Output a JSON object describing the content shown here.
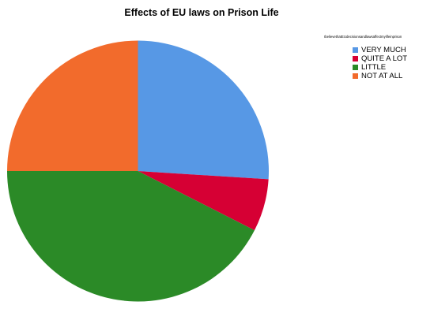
{
  "chart_data": {
    "type": "pie",
    "title": "Effects of EU laws on Prison Life",
    "legend_title": "IbelievethatEUdecisionsandlawsaffectmylifeinprison",
    "legend_position": "top-right",
    "start_angle_deg": 0,
    "direction": "clockwise",
    "slices": [
      {
        "label": "VERY MUCH",
        "value": 26.0,
        "color": "#5798E5"
      },
      {
        "label": "QUITE A LOT",
        "value": 6.5,
        "color": "#D60034"
      },
      {
        "label": "LITTLE",
        "value": 42.5,
        "color": "#2B8A27"
      },
      {
        "label": "NOT AT ALL",
        "value": 25.0,
        "color": "#F26B2C"
      }
    ]
  }
}
